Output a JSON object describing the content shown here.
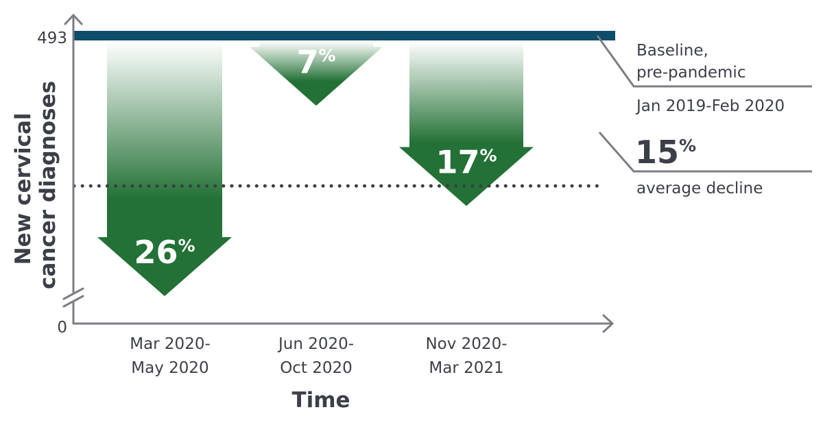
{
  "chart_data": {
    "type": "bar",
    "ylabel": "New cervical cancer diagnoses",
    "xlabel": "Time",
    "y_axis_ticks": [
      "493",
      "0"
    ],
    "baseline": {
      "value": 493,
      "label_line1": "Baseline,",
      "label_line2": "pre-pandemic",
      "label_line3": "Jan 2019-Feb 2020"
    },
    "average_decline": {
      "percent": 15,
      "value_label": "15%",
      "label": "average decline"
    },
    "categories": [
      {
        "label_line1": "Mar 2020-",
        "label_line2": "May 2020"
      },
      {
        "label_line1": "Jun 2020-",
        "label_line2": "Oct 2020"
      },
      {
        "label_line1": "Nov 2020-",
        "label_line2": "Mar 2021"
      }
    ],
    "series": [
      {
        "values": [
          26,
          7,
          17
        ],
        "labels": [
          "26%",
          "7%",
          "17%"
        ]
      }
    ],
    "ylim": [
      0,
      493
    ],
    "axis_break": true,
    "colors": {
      "baseline": "#0f4d6b",
      "arrow": "#237136",
      "axis": "#7b7d84",
      "text": "#3c3f48"
    }
  }
}
